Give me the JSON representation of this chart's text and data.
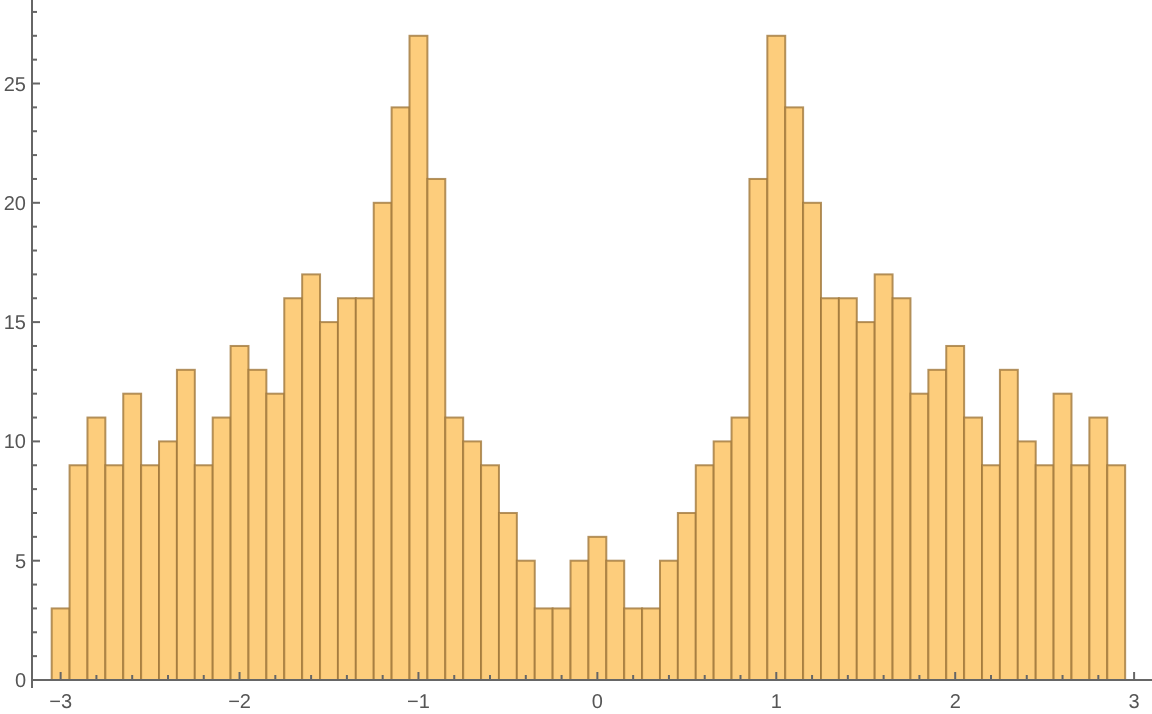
{
  "chart_data": {
    "type": "histogram",
    "color": "#fdcd7c",
    "bins": [
      -3.05,
      -2.95,
      -2.85,
      -2.75,
      -2.65,
      -2.55,
      -2.45,
      -2.35,
      -2.25,
      -2.15,
      -2.05,
      -1.95,
      -1.85,
      -1.75,
      -1.65,
      -1.55,
      -1.45,
      -1.35,
      -1.25,
      -1.15,
      -1.05,
      -0.95,
      -0.85,
      -0.75,
      -0.65,
      -0.55,
      -0.45,
      -0.35,
      -0.25,
      -0.15,
      -0.05,
      0.05,
      0.15,
      0.25,
      0.35,
      0.45,
      0.55,
      0.65,
      0.75,
      0.85,
      0.95,
      1.05,
      1.15,
      1.25,
      1.35,
      1.45,
      1.55,
      1.65,
      1.75,
      1.85,
      1.95,
      2.05,
      2.15,
      2.25,
      2.35,
      2.45,
      2.55,
      2.65,
      2.75,
      2.85,
      2.95
    ],
    "values": [
      3,
      9,
      11,
      9,
      12,
      9,
      10,
      13,
      9,
      11,
      14,
      13,
      12,
      16,
      17,
      15,
      16,
      16,
      20,
      24,
      27,
      21,
      11,
      10,
      9,
      7,
      5,
      3,
      3,
      5,
      6,
      5,
      3,
      3,
      5,
      7,
      9,
      10,
      11,
      21,
      27,
      24,
      20,
      16,
      16,
      15,
      17,
      16,
      12,
      13,
      14,
      11,
      9,
      13,
      10,
      9,
      12,
      9,
      11,
      9
    ],
    "xlim": [
      -3.16,
      3.1
    ],
    "ylim": [
      0,
      28.5
    ],
    "xticks": [
      -3,
      {
        "value": -2.8,
        "label": null
      },
      {
        "value": -2.6,
        "label": null
      },
      {
        "value": -2.4,
        "label": null
      },
      {
        "value": -2.2,
        "label": null
      },
      -2,
      {
        "value": -1.8,
        "label": null
      },
      {
        "value": -1.6,
        "label": null
      },
      {
        "value": -1.4,
        "label": null
      },
      {
        "value": -1.2,
        "label": null
      },
      -1,
      {
        "value": -0.8,
        "label": null
      },
      {
        "value": -0.6,
        "label": null
      },
      {
        "value": -0.4,
        "label": null
      },
      {
        "value": -0.2,
        "label": null
      },
      0,
      {
        "value": 0.2,
        "label": null
      },
      {
        "value": 0.4,
        "label": null
      },
      {
        "value": 0.6,
        "label": null
      },
      {
        "value": 0.8,
        "label": null
      },
      1,
      {
        "value": 1.2,
        "label": null
      },
      {
        "value": 1.4,
        "label": null
      },
      {
        "value": 1.6,
        "label": null
      },
      {
        "value": 1.8,
        "label": null
      },
      2,
      {
        "value": 2.2,
        "label": null
      },
      {
        "value": 2.4,
        "label": null
      },
      {
        "value": 2.6,
        "label": null
      },
      {
        "value": 2.8,
        "label": null
      },
      3
    ],
    "yticks": [
      0,
      {
        "value": 1,
        "label": null
      },
      {
        "value": 2,
        "label": null
      },
      {
        "value": 3,
        "label": null
      },
      {
        "value": 4,
        "label": null
      },
      5,
      {
        "value": 6,
        "label": null
      },
      {
        "value": 7,
        "label": null
      },
      {
        "value": 8,
        "label": null
      },
      {
        "value": 9,
        "label": null
      },
      10,
      {
        "value": 11,
        "label": null
      },
      {
        "value": 12,
        "label": null
      },
      {
        "value": 13,
        "label": null
      },
      {
        "value": 14,
        "label": null
      },
      15,
      {
        "value": 16,
        "label": null
      },
      {
        "value": 17,
        "label": null
      },
      {
        "value": 18,
        "label": null
      },
      {
        "value": 19,
        "label": null
      },
      20,
      {
        "value": 21,
        "label": null
      },
      {
        "value": 22,
        "label": null
      },
      {
        "value": 23,
        "label": null
      },
      {
        "value": 24,
        "label": null
      },
      25,
      {
        "value": 26,
        "label": null
      },
      {
        "value": 27,
        "label": null
      },
      {
        "value": 28,
        "label": null
      }
    ]
  }
}
